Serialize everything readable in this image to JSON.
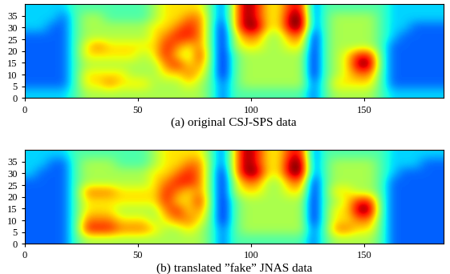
{
  "chart_data": [
    {
      "type": "heatmap",
      "xlabel": "(a) original CSJ-SPS data",
      "xlim": [
        0,
        185
      ],
      "ylim": [
        0,
        40
      ],
      "xticks": [
        0,
        50,
        100,
        150
      ],
      "yticks": [
        0,
        5,
        10,
        15,
        20,
        25,
        30,
        35
      ],
      "color_range": [
        0,
        9
      ],
      "cells": [
        [
          3,
          3,
          3,
          3,
          4,
          5,
          5,
          5,
          5,
          5,
          5,
          5,
          5,
          5,
          5,
          5,
          4,
          2,
          4,
          4,
          4,
          4,
          4,
          4,
          4,
          2,
          4,
          5,
          5,
          5,
          5,
          4,
          3,
          3,
          3,
          3,
          3
        ],
        [
          2,
          2,
          2,
          2,
          4,
          6,
          6,
          7,
          6,
          6,
          6,
          5,
          5,
          5,
          6,
          5,
          4,
          2,
          4,
          5,
          5,
          5,
          5,
          5,
          5,
          2,
          4,
          6,
          6,
          6,
          6,
          4,
          2,
          2,
          2,
          2,
          2
        ],
        [
          2,
          2,
          2,
          2,
          4,
          6,
          6,
          6,
          6,
          5,
          5,
          5,
          6,
          6,
          7,
          6,
          4,
          1,
          4,
          5,
          5,
          5,
          5,
          5,
          5,
          1,
          4,
          5,
          6,
          7,
          7,
          4,
          2,
          2,
          2,
          2,
          2
        ],
        [
          2,
          2,
          2,
          2,
          4,
          5,
          5,
          5,
          5,
          5,
          5,
          5,
          7,
          8,
          6,
          7,
          4,
          1,
          4,
          5,
          5,
          5,
          5,
          5,
          5,
          1,
          4,
          5,
          6,
          9,
          9,
          4,
          2,
          2,
          2,
          2,
          2
        ],
        [
          2,
          2,
          2,
          2,
          4,
          6,
          6,
          6,
          6,
          6,
          5,
          6,
          8,
          6,
          5,
          8,
          4,
          1,
          4,
          5,
          5,
          5,
          5,
          5,
          5,
          1,
          4,
          5,
          6,
          8,
          8,
          4,
          2,
          2,
          2,
          2,
          2
        ],
        [
          2,
          2,
          2,
          2,
          4,
          6,
          7,
          6,
          6,
          6,
          6,
          6,
          8,
          7,
          6,
          7,
          4,
          1,
          5,
          6,
          6,
          5,
          5,
          6,
          6,
          1,
          4,
          5,
          5,
          5,
          5,
          4,
          2,
          2,
          2,
          2,
          2
        ],
        [
          2,
          2,
          2,
          2,
          4,
          5,
          5,
          5,
          5,
          5,
          5,
          6,
          7,
          8,
          8,
          7,
          4,
          1,
          5,
          7,
          7,
          5,
          5,
          7,
          7,
          1,
          4,
          5,
          5,
          5,
          5,
          4,
          3,
          2,
          2,
          2,
          2
        ],
        [
          3,
          3,
          2,
          2,
          4,
          5,
          5,
          5,
          5,
          5,
          5,
          6,
          6,
          7,
          8,
          7,
          4,
          1,
          6,
          9,
          9,
          6,
          6,
          9,
          9,
          2,
          4,
          5,
          5,
          5,
          5,
          4,
          3,
          3,
          2,
          2,
          2
        ],
        [
          3,
          3,
          3,
          2,
          4,
          5,
          5,
          4,
          4,
          4,
          4,
          5,
          6,
          6,
          7,
          7,
          4,
          2,
          6,
          9,
          8,
          6,
          6,
          9,
          9,
          2,
          4,
          5,
          5,
          5,
          5,
          4,
          3,
          3,
          3,
          3,
          3
        ],
        [
          3,
          3,
          3,
          3,
          4,
          4,
          4,
          4,
          4,
          4,
          4,
          5,
          6,
          6,
          6,
          6,
          4,
          2,
          6,
          9,
          8,
          6,
          6,
          8,
          8,
          2,
          4,
          4,
          4,
          4,
          4,
          4,
          3,
          3,
          3,
          3,
          3
        ]
      ]
    },
    {
      "type": "heatmap",
      "xlabel": "(b) translated ”fake” JNAS data",
      "xlim": [
        0,
        185
      ],
      "ylim": [
        0,
        40
      ],
      "xticks": [
        0,
        50,
        100,
        150
      ],
      "yticks": [
        0,
        5,
        10,
        15,
        20,
        25,
        30,
        35
      ],
      "color_range": [
        0,
        9
      ],
      "cells": [
        [
          2,
          2,
          2,
          2,
          4,
          5,
          5,
          5,
          5,
          5,
          5,
          5,
          5,
          5,
          5,
          5,
          4,
          2,
          4,
          4,
          4,
          4,
          4,
          4,
          4,
          2,
          4,
          5,
          5,
          5,
          5,
          4,
          2,
          2,
          2,
          2,
          2
        ],
        [
          2,
          2,
          2,
          2,
          4,
          8,
          8,
          8,
          7,
          7,
          7,
          6,
          5,
          5,
          6,
          5,
          4,
          2,
          4,
          5,
          5,
          5,
          5,
          5,
          5,
          2,
          4,
          7,
          7,
          6,
          6,
          4,
          2,
          2,
          2,
          2,
          2
        ],
        [
          2,
          2,
          2,
          2,
          4,
          7,
          7,
          7,
          6,
          6,
          6,
          5,
          6,
          7,
          7,
          6,
          4,
          1,
          4,
          5,
          5,
          5,
          5,
          5,
          5,
          1,
          4,
          6,
          6,
          7,
          7,
          4,
          2,
          2,
          2,
          2,
          2
        ],
        [
          2,
          2,
          2,
          2,
          4,
          6,
          6,
          6,
          5,
          5,
          5,
          5,
          7,
          8,
          6,
          7,
          4,
          1,
          4,
          5,
          5,
          5,
          5,
          5,
          5,
          1,
          4,
          6,
          6,
          9,
          9,
          4,
          2,
          2,
          2,
          2,
          2
        ],
        [
          2,
          2,
          2,
          2,
          4,
          6,
          6,
          6,
          6,
          6,
          6,
          6,
          8,
          6,
          6,
          8,
          4,
          1,
          4,
          5,
          5,
          5,
          5,
          5,
          5,
          1,
          4,
          5,
          6,
          8,
          8,
          4,
          2,
          2,
          2,
          2,
          2
        ],
        [
          2,
          2,
          2,
          2,
          4,
          7,
          7,
          7,
          6,
          6,
          6,
          6,
          8,
          7,
          6,
          7,
          4,
          1,
          5,
          6,
          6,
          5,
          5,
          6,
          6,
          1,
          4,
          6,
          6,
          5,
          5,
          4,
          2,
          2,
          2,
          2,
          2
        ],
        [
          2,
          2,
          2,
          2,
          4,
          5,
          5,
          5,
          5,
          5,
          5,
          6,
          7,
          8,
          8,
          7,
          4,
          1,
          5,
          7,
          7,
          5,
          5,
          7,
          7,
          1,
          4,
          5,
          5,
          5,
          5,
          4,
          2,
          2,
          2,
          2,
          2
        ],
        [
          3,
          2,
          2,
          2,
          4,
          5,
          5,
          5,
          5,
          5,
          5,
          6,
          6,
          7,
          8,
          7,
          4,
          1,
          6,
          9,
          9,
          6,
          6,
          9,
          9,
          2,
          4,
          5,
          5,
          5,
          5,
          4,
          3,
          2,
          2,
          2,
          2
        ],
        [
          3,
          3,
          2,
          2,
          4,
          5,
          5,
          5,
          4,
          4,
          4,
          5,
          6,
          6,
          7,
          7,
          4,
          2,
          6,
          9,
          8,
          6,
          6,
          9,
          9,
          2,
          4,
          5,
          5,
          5,
          5,
          4,
          3,
          3,
          3,
          2,
          2
        ],
        [
          3,
          3,
          3,
          3,
          4,
          4,
          4,
          4,
          4,
          4,
          4,
          5,
          6,
          6,
          6,
          6,
          4,
          2,
          6,
          9,
          8,
          6,
          6,
          8,
          8,
          2,
          4,
          4,
          4,
          4,
          4,
          4,
          3,
          3,
          3,
          3,
          3
        ]
      ]
    }
  ]
}
